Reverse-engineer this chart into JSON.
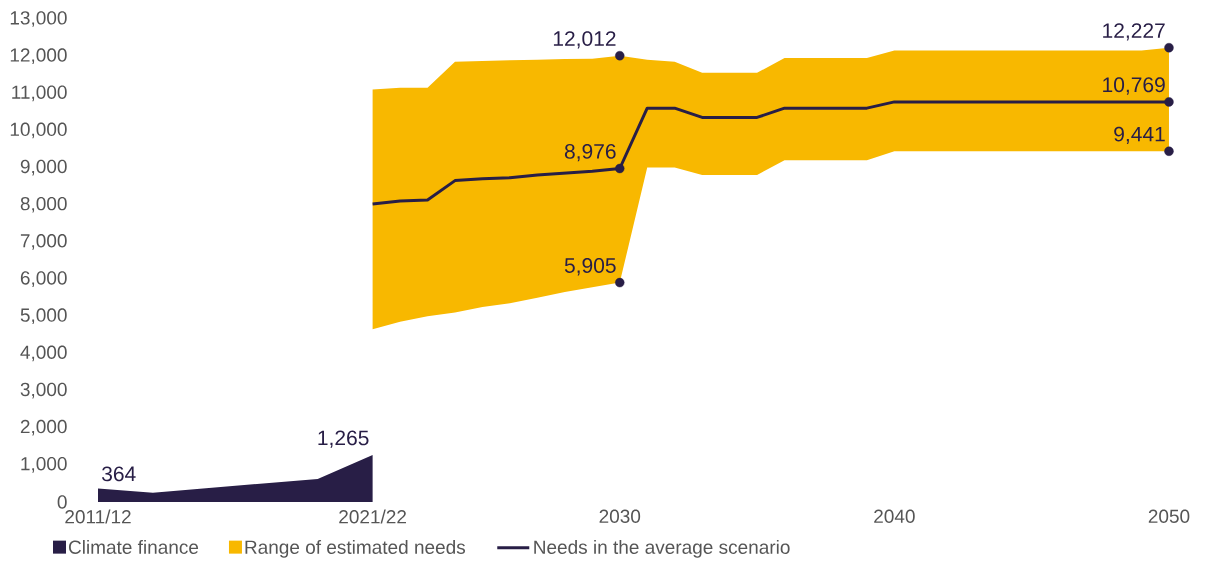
{
  "chart_data": {
    "type": "line",
    "series": [
      {
        "name": "Climate finance",
        "type": "area",
        "color": "#281e46",
        "x": [
          2011,
          2013,
          2019,
          2021
        ],
        "values": [
          364,
          250,
          620,
          1265
        ]
      },
      {
        "name": "Range of estimated needs",
        "type": "area",
        "color": "#f8b800"
      },
      {
        "name": "Needs in the average scenario",
        "color": "#281e46",
        "x": [
          2021,
          2022,
          2023,
          2024,
          2025,
          2026,
          2027,
          2028,
          2029,
          2030,
          2031,
          2032,
          2033,
          2034,
          2035,
          2036,
          2037,
          2038,
          2039,
          2040,
          2041,
          2042,
          2043,
          2044,
          2045,
          2046,
          2047,
          2048,
          2049,
          2050
        ],
        "values": [
          8020,
          8100,
          8130,
          8650,
          8700,
          8730,
          8800,
          8850,
          8900,
          8976,
          10600,
          10600,
          10350,
          10350,
          10350,
          10600,
          10600,
          10600,
          10600,
          10769,
          10769,
          10769,
          10769,
          10769,
          10769,
          10769,
          10769,
          10769,
          10769,
          10769
        ],
        "upper": [
          11100,
          11150,
          11150,
          11850,
          11870,
          11890,
          11900,
          11920,
          11930,
          12012,
          11900,
          11850,
          11550,
          11550,
          11550,
          11950,
          11950,
          11950,
          11950,
          12150,
          12150,
          12150,
          12150,
          12150,
          12150,
          12150,
          12150,
          12150,
          12150,
          12227
        ],
        "lower": [
          4650,
          4850,
          5000,
          5100,
          5250,
          5350,
          5500,
          5650,
          5780,
          5905,
          9000,
          9000,
          8800,
          8800,
          8800,
          9200,
          9200,
          9200,
          9200,
          9441,
          9441,
          9441,
          9441,
          9441,
          9441,
          9441,
          9441,
          9441,
          9441,
          9441
        ]
      },
      {
        "type": "scatter",
        "color": "#281e46",
        "x": [
          2030,
          2030,
          2030,
          2050,
          2050,
          2050
        ],
        "values": [
          12012,
          8976,
          5905,
          12227,
          10769,
          9441
        ]
      }
    ],
    "annotations": [
      {
        "text": "364",
        "x": 2011,
        "y": 364
      },
      {
        "text": "1,265",
        "x": 2021,
        "y": 1265
      },
      {
        "text": "12,012",
        "x": 2030,
        "y": 12012
      },
      {
        "text": "8,976",
        "x": 2030,
        "y": 8976
      },
      {
        "text": "5,905",
        "x": 2030,
        "y": 5905
      },
      {
        "text": "12,227",
        "x": 2050,
        "y": 12227
      },
      {
        "text": "10,769",
        "x": 2050,
        "y": 10769
      },
      {
        "text": "9,441",
        "x": 2050,
        "y": 9441
      }
    ],
    "xlim": [
      2011,
      2050
    ],
    "xticks": [
      {
        "value": 2011,
        "label": "2011/12"
      },
      {
        "value": 2021,
        "label": "2021/22"
      },
      2030,
      2040,
      2050
    ],
    "ylim": [
      0,
      13000
    ],
    "yticks": [
      0,
      {
        "value": 1000,
        "label": "1,000"
      },
      {
        "value": 2000,
        "label": "2,000"
      },
      {
        "value": 3000,
        "label": "3,000"
      },
      {
        "value": 4000,
        "label": "4,000"
      },
      {
        "value": 5000,
        "label": "5,000"
      },
      {
        "value": 6000,
        "label": "6,000"
      },
      {
        "value": 7000,
        "label": "7,000"
      },
      {
        "value": 8000,
        "label": "8,000"
      },
      {
        "value": 9000,
        "label": "9,000"
      },
      {
        "value": 10000,
        "label": "10,000"
      },
      {
        "value": 11000,
        "label": "11,000"
      },
      {
        "value": 12000,
        "label": "12,000"
      },
      {
        "value": 13000,
        "label": "13,000"
      }
    ],
    "grid": false,
    "legend": "bottom left"
  }
}
